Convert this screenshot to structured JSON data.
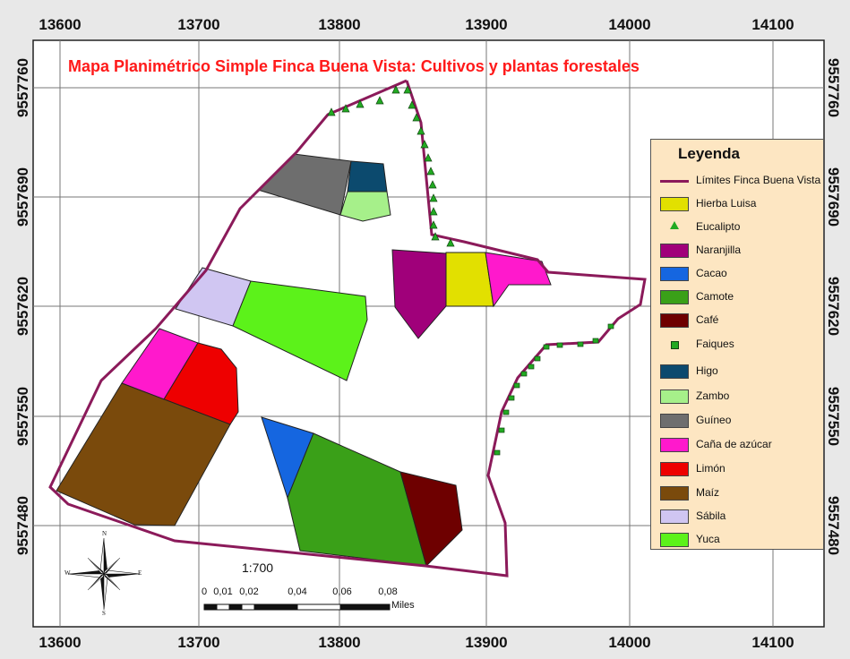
{
  "title": "Mapa Planimétrico Simple Finca Buena Vista: Cultivos y plantas forestales",
  "grid": {
    "x_ticks": [
      "13600",
      "13700",
      "13800",
      "13900",
      "14000",
      "14100"
    ],
    "y_ticks": [
      "9557760",
      "9557690",
      "9557620",
      "9557550",
      "9557480"
    ]
  },
  "legend": {
    "title": "Leyenda",
    "items": [
      {
        "label": "Límites Finca Buena Vista",
        "kind": "line",
        "color": "#8b1a5a"
      },
      {
        "label": "Hierba Luisa",
        "kind": "fill",
        "color": "#e2e000"
      },
      {
        "label": "Eucalipto",
        "kind": "triangle",
        "color": "#22aa22"
      },
      {
        "label": "Naranjilla",
        "kind": "fill",
        "color": "#a0007a"
      },
      {
        "label": "Cacao",
        "kind": "fill",
        "color": "#1566e0"
      },
      {
        "label": "Camote",
        "kind": "fill",
        "color": "#3aa018"
      },
      {
        "label": "Café",
        "kind": "fill",
        "color": "#6e0000"
      },
      {
        "label": "Faiques",
        "kind": "square",
        "color": "#22aa22"
      },
      {
        "label": "Higo",
        "kind": "fill",
        "color": "#0c4a6e"
      },
      {
        "label": "Zambo",
        "kind": "fill",
        "color": "#a6f08a"
      },
      {
        "label": "Guíneo",
        "kind": "fill",
        "color": "#6e6e6e"
      },
      {
        "label": "Caña de azúcar",
        "kind": "fill",
        "color": "#ff19cc"
      },
      {
        "label": "Limón",
        "kind": "fill",
        "color": "#ee0000"
      },
      {
        "label": "Maíz",
        "kind": "fill",
        "color": "#7a4a0c"
      },
      {
        "label": "Sábila",
        "kind": "fill",
        "color": "#d0c6f2"
      },
      {
        "label": "Yuca",
        "kind": "fill",
        "color": "#5cf21a"
      }
    ]
  },
  "scale": {
    "ratio": "1:700",
    "labels": [
      "0",
      "0,01",
      "0,02",
      "0,04",
      "0,06",
      "0,08"
    ],
    "unit": "Miles"
  },
  "compass": {
    "n": "N",
    "s": "S",
    "e": "E",
    "w": "W"
  }
}
